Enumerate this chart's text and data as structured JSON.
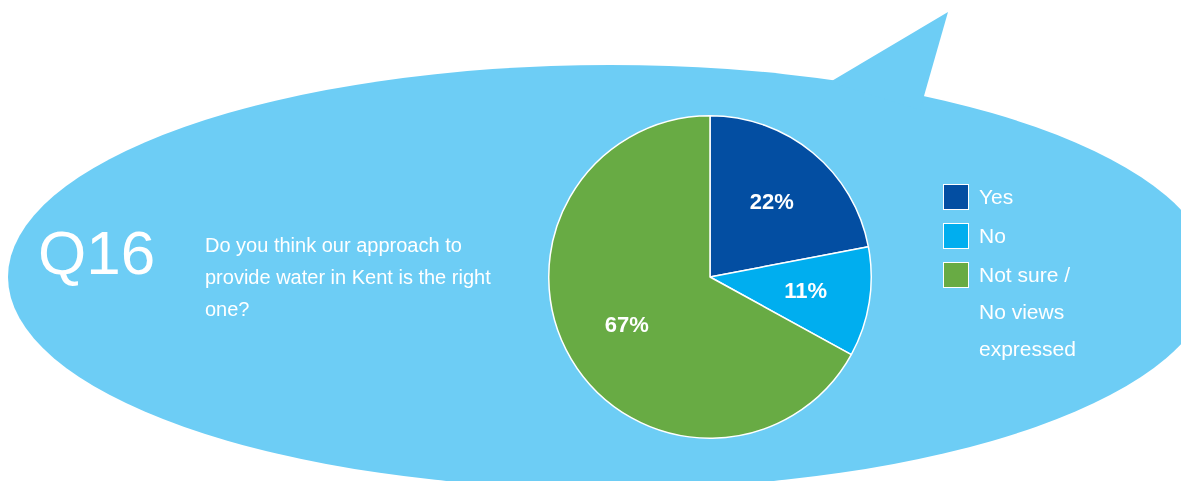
{
  "chart_data": {
    "type": "pie",
    "title": "Q16",
    "subtitle": "Do you think our approach to provide water in Kent is the right one?",
    "categories": [
      "Yes",
      "No",
      "Not sure / No views expressed"
    ],
    "values": [
      22,
      11,
      67
    ],
    "colors": [
      "#034ea2",
      "#00aeef",
      "#68ab44"
    ],
    "value_labels": [
      "22%",
      "11%",
      "67%"
    ],
    "legend": "right"
  }
}
